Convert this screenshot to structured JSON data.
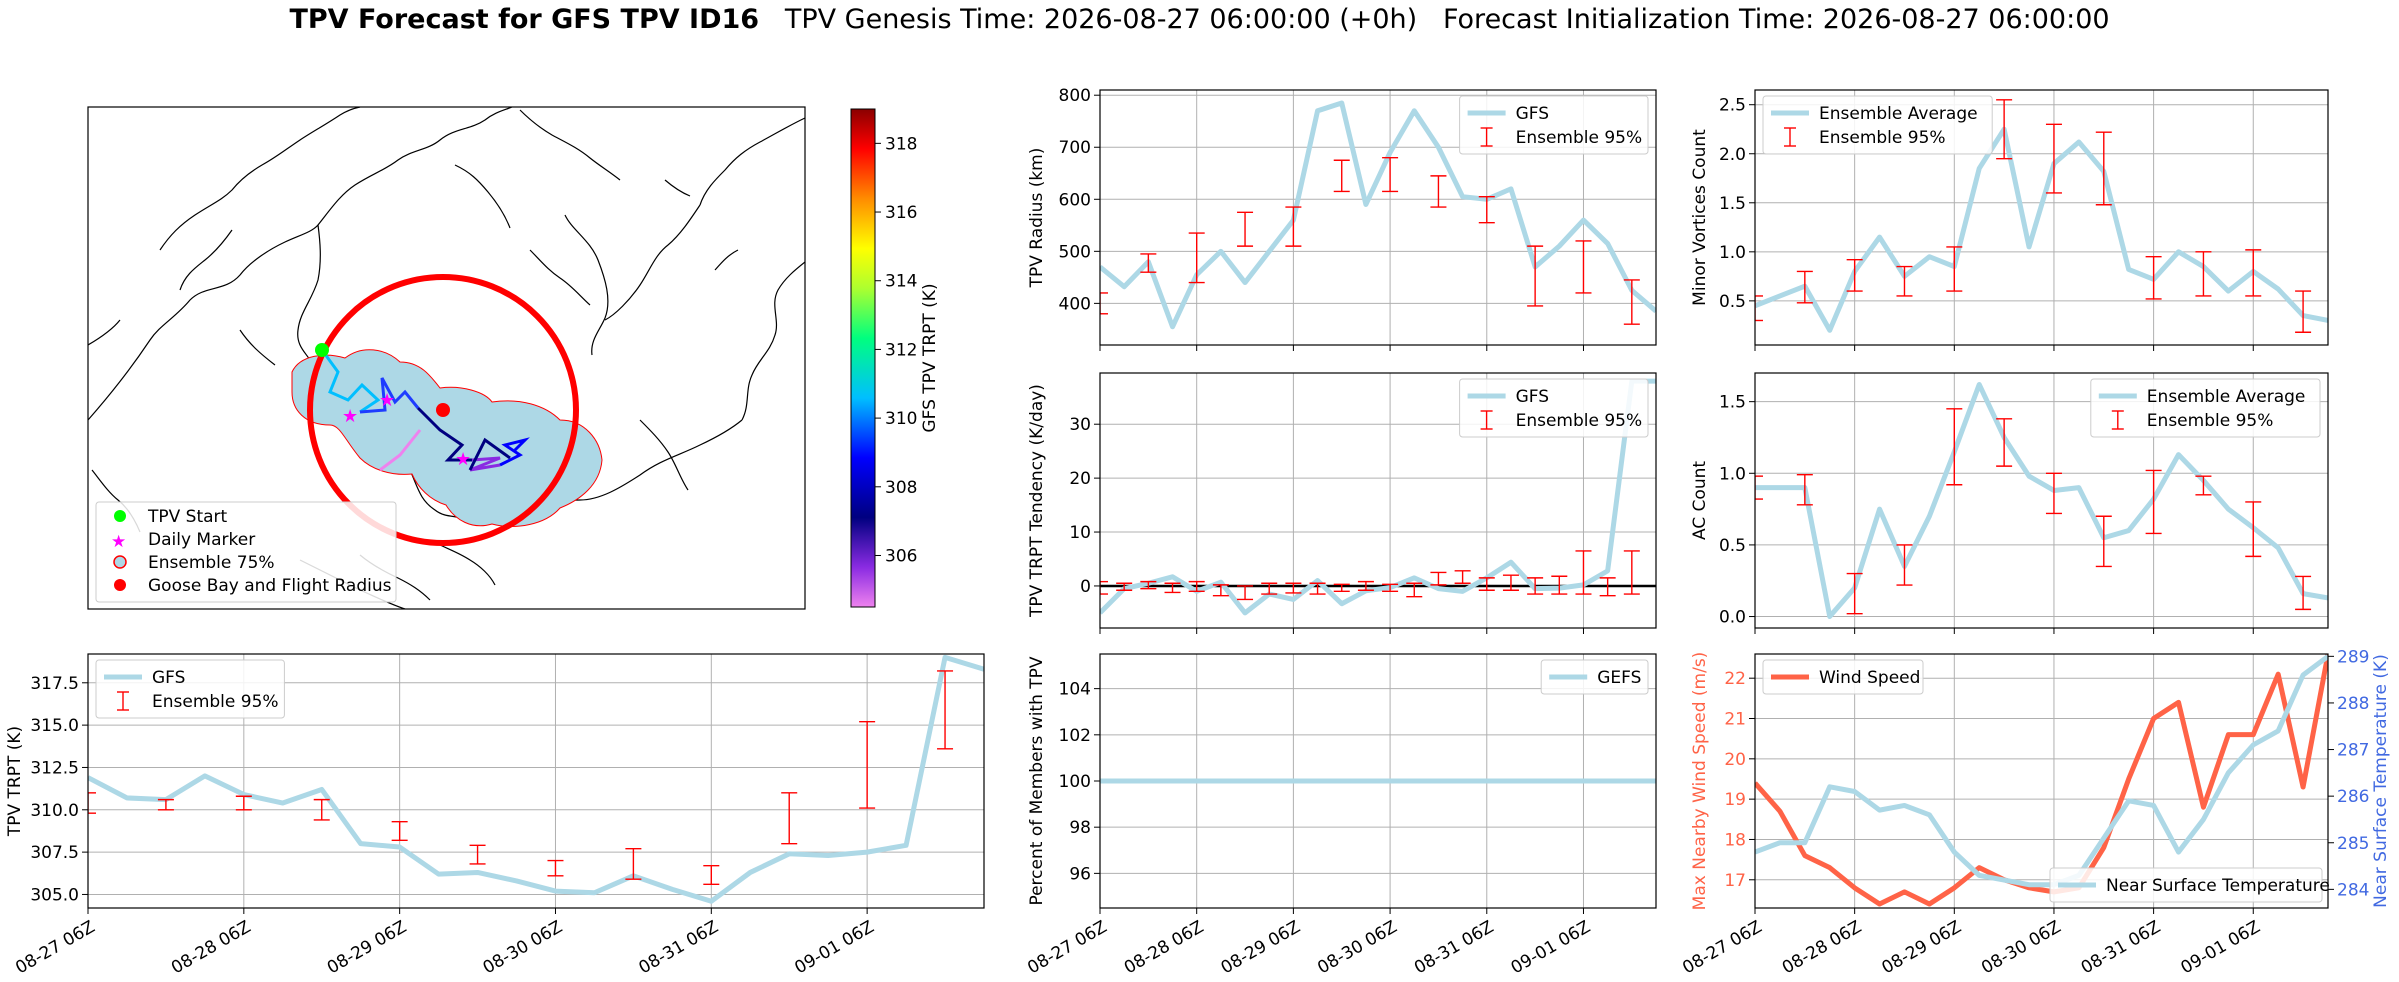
{
  "header": {
    "main_title": "TPV Forecast for GFS TPV ID16",
    "genesis": "TPV Genesis Time: 2026-08-27 06:00:00 (+0h)",
    "init": "Forecast Initialization Time: 2026-08-27 06:00:00"
  },
  "colors": {
    "gfs_line": "#add8e6",
    "errorbar": "#ff0000",
    "wind": "#ff6347",
    "temp_axis": "#4169e1",
    "ocean": "#ffffff",
    "ensemble_fill": "#add8e6",
    "flight_radius": "#ff0000",
    "tpv_start": "#00ff00",
    "daily_marker": "#ff00ff"
  },
  "map": {
    "colorbar_label": "GFS TPV TRPT (K)",
    "colorbar_ticks": [
      306,
      308,
      310,
      312,
      314,
      316,
      318
    ],
    "colorbar_range": [
      304.5,
      319
    ],
    "legend": [
      "TPV Start",
      "Daily Marker",
      "Ensemble 75%",
      "Goose Bay and Flight Radius"
    ]
  },
  "time_axis": {
    "ticks": [
      "08-27 06Z",
      "08-28 06Z",
      "08-29 06Z",
      "08-30 06Z",
      "08-31 06Z",
      "09-01 06Z"
    ],
    "n_steps": 24
  },
  "chart_data": [
    {
      "id": "trpt",
      "type": "line",
      "ylabel": "TPV TRPT (K)",
      "ylim": [
        304.2,
        319.2
      ],
      "yticks": [
        305.0,
        307.5,
        310.0,
        312.5,
        315.0,
        317.5
      ],
      "ytick_labels": [
        "305.0",
        "307.5",
        "310.0",
        "312.5",
        "315.0",
        "317.5"
      ],
      "legend_position": "upper-left",
      "series": [
        {
          "name": "GFS",
          "x": [
            0,
            1,
            2,
            3,
            4,
            5,
            6,
            7,
            8,
            9,
            10,
            11,
            12,
            13,
            14,
            15,
            16,
            17,
            18,
            19,
            20,
            21,
            22,
            23
          ],
          "y": [
            311.9,
            310.7,
            310.6,
            312.0,
            310.9,
            310.4,
            311.2,
            308.0,
            307.8,
            306.2,
            306.3,
            305.8,
            305.2,
            305.1,
            306.1,
            305.3,
            304.6,
            306.3,
            307.4,
            307.3,
            307.5,
            307.9,
            319.0,
            318.3
          ]
        },
        {
          "name": "Ensemble 95%",
          "x": [
            0,
            2,
            4,
            6,
            8,
            10,
            12,
            14,
            16,
            18,
            20,
            22
          ],
          "low": [
            309.8,
            310.0,
            310.0,
            309.4,
            308.2,
            306.8,
            306.1,
            305.9,
            305.6,
            308.0,
            310.1,
            313.6
          ],
          "high": [
            311.0,
            310.6,
            310.8,
            310.6,
            309.3,
            307.9,
            307.0,
            307.7,
            306.7,
            311.0,
            315.2,
            318.2
          ]
        }
      ]
    },
    {
      "id": "radius",
      "type": "line",
      "ylabel": "TPV Radius (km)",
      "ylim": [
        320,
        810
      ],
      "yticks": [
        400,
        500,
        600,
        700,
        800
      ],
      "ytick_labels": [
        "400",
        "500",
        "600",
        "700",
        "800"
      ],
      "legend_position": "upper-right",
      "series": [
        {
          "name": "GFS",
          "x": [
            0,
            1,
            2,
            3,
            4,
            5,
            6,
            7,
            8,
            9,
            10,
            11,
            12,
            13,
            14,
            15,
            16,
            17,
            18,
            19,
            20,
            21,
            22,
            23
          ],
          "y": [
            470,
            432,
            480,
            355,
            455,
            500,
            440,
            500,
            560,
            770,
            785,
            590,
            690,
            770,
            700,
            605,
            600,
            620,
            470,
            510,
            560,
            515,
            425,
            385
          ]
        },
        {
          "name": "Ensemble 95%",
          "x": [
            0,
            2,
            4,
            6,
            8,
            10,
            12,
            14,
            16,
            18,
            20,
            22
          ],
          "low": [
            380,
            460,
            440,
            510,
            510,
            615,
            615,
            585,
            555,
            395,
            420,
            360
          ],
          "high": [
            420,
            495,
            535,
            575,
            585,
            675,
            680,
            645,
            605,
            510,
            520,
            445
          ]
        }
      ]
    },
    {
      "id": "tendency",
      "type": "line",
      "ylabel": "TPV TRPT Tendency (K/day)",
      "ylim": [
        -7.8,
        39.5
      ],
      "yticks": [
        0,
        10,
        20,
        30
      ],
      "ytick_labels": [
        "0",
        "10",
        "20",
        "30"
      ],
      "zero_line": 0,
      "legend_position": "upper-right",
      "series": [
        {
          "name": "GFS",
          "x": [
            0,
            1,
            2,
            3,
            4,
            5,
            6,
            7,
            8,
            9,
            10,
            11,
            12,
            13,
            14,
            15,
            16,
            17,
            18,
            19,
            20,
            21,
            22,
            23
          ],
          "y": [
            -5.0,
            -0.5,
            0.5,
            1.7,
            -1.0,
            0.7,
            -5.0,
            -1.5,
            -2.5,
            1.0,
            -3.3,
            -0.9,
            -0.3,
            1.5,
            -0.5,
            -1.0,
            1.5,
            4.4,
            -0.5,
            -0.4,
            0.2,
            2.8,
            38.0,
            38.0
          ]
        },
        {
          "name": "Ensemble 95%",
          "x": [
            0,
            1,
            2,
            3,
            4,
            5,
            6,
            7,
            8,
            9,
            10,
            11,
            12,
            13,
            14,
            15,
            16,
            17,
            18,
            19,
            20,
            21,
            22
          ],
          "low": [
            -1.5,
            -0.8,
            -0.5,
            -1.2,
            -1.0,
            -1.8,
            -2.5,
            -1.5,
            -1.3,
            -1.5,
            -1.0,
            -0.8,
            -1.0,
            -2.0,
            0.2,
            0.5,
            -0.8,
            -0.8,
            -1.5,
            -1.5,
            -1.5,
            -1.8,
            -1.5
          ],
          "high": [
            0.8,
            0.5,
            0.8,
            0.5,
            0.8,
            0.2,
            0.0,
            0.5,
            0.5,
            0.5,
            0.3,
            0.8,
            0.3,
            0.5,
            2.5,
            2.8,
            1.5,
            2.0,
            1.5,
            1.8,
            6.5,
            1.5,
            6.5
          ]
        }
      ]
    },
    {
      "id": "percent",
      "type": "line",
      "ylabel": "Percent of Members with TPV",
      "ylim": [
        94.5,
        105.5
      ],
      "yticks": [
        96,
        98,
        100,
        102,
        104
      ],
      "ytick_labels": [
        "96",
        "98",
        "100",
        "102",
        "104"
      ],
      "legend_position": "upper-right",
      "series": [
        {
          "name": "GEFS",
          "x": [
            0,
            23
          ],
          "y": [
            100,
            100
          ]
        }
      ]
    },
    {
      "id": "minor",
      "type": "line",
      "ylabel": "Minor Vortices Count",
      "ylim": [
        0.05,
        2.65
      ],
      "yticks": [
        0.5,
        1.0,
        1.5,
        2.0,
        2.5
      ],
      "ytick_labels": [
        "0.5",
        "1.0",
        "1.5",
        "2.0",
        "2.5"
      ],
      "legend_position": "upper-left",
      "series": [
        {
          "name": "Ensemble Average",
          "x": [
            0,
            1,
            2,
            3,
            4,
            5,
            6,
            7,
            8,
            9,
            10,
            11,
            12,
            13,
            14,
            15,
            16,
            17,
            18,
            19,
            20,
            21,
            22,
            23
          ],
          "y": [
            0.45,
            0.55,
            0.65,
            0.2,
            0.8,
            1.15,
            0.75,
            0.95,
            0.85,
            1.85,
            2.25,
            1.05,
            1.9,
            2.12,
            1.82,
            0.82,
            0.72,
            1.0,
            0.85,
            0.6,
            0.8,
            0.62,
            0.35,
            0.3
          ]
        },
        {
          "name": "Ensemble 95%",
          "x": [
            0,
            2,
            4,
            6,
            8,
            10,
            12,
            14,
            16,
            18,
            20,
            22
          ],
          "low": [
            0.3,
            0.48,
            0.6,
            0.55,
            0.6,
            1.95,
            1.6,
            1.48,
            0.52,
            0.55,
            0.55,
            0.18
          ],
          "high": [
            0.55,
            0.8,
            0.92,
            0.85,
            1.05,
            2.55,
            2.3,
            2.22,
            0.95,
            1.0,
            1.02,
            0.6
          ]
        }
      ]
    },
    {
      "id": "ac",
      "type": "line",
      "ylabel": "AC Count",
      "ylim": [
        -0.08,
        1.7
      ],
      "yticks": [
        0.0,
        0.5,
        1.0,
        1.5
      ],
      "ytick_labels": [
        "0.0",
        "0.5",
        "1.0",
        "1.5"
      ],
      "legend_position": "upper-right",
      "series": [
        {
          "name": "Ensemble Average",
          "x": [
            0,
            1,
            2,
            3,
            4,
            5,
            6,
            7,
            8,
            9,
            10,
            11,
            12,
            13,
            14,
            15,
            16,
            17,
            18,
            19,
            20,
            21,
            22,
            23
          ],
          "y": [
            0.9,
            0.9,
            0.9,
            0.0,
            0.2,
            0.75,
            0.35,
            0.7,
            1.15,
            1.62,
            1.25,
            0.98,
            0.88,
            0.9,
            0.55,
            0.6,
            0.82,
            1.13,
            0.95,
            0.75,
            0.62,
            0.48,
            0.16,
            0.13
          ]
        },
        {
          "name": "Ensemble 95%",
          "x": [
            0,
            2,
            4,
            6,
            8,
            10,
            12,
            14,
            16,
            18,
            20,
            22
          ],
          "low": [
            0.82,
            0.78,
            0.02,
            0.22,
            0.92,
            1.05,
            0.72,
            0.35,
            0.58,
            0.85,
            0.42,
            0.05
          ],
          "high": [
            0.98,
            0.99,
            0.3,
            0.5,
            1.45,
            1.38,
            1.0,
            0.7,
            1.02,
            0.98,
            0.8,
            0.28
          ]
        }
      ]
    },
    {
      "id": "wind_temp",
      "type": "line",
      "ylabel": "Max Nearby Wind Speed (m/s)",
      "ylim": [
        16.3,
        22.6
      ],
      "yticks": [
        17,
        18,
        19,
        20,
        21,
        22
      ],
      "ytick_labels": [
        "17",
        "18",
        "19",
        "20",
        "21",
        "22"
      ],
      "y2label": "Near Surface Temperature (K)",
      "y2lim": [
        283.6,
        289.05
      ],
      "y2ticks": [
        284,
        285,
        286,
        287,
        288,
        289
      ],
      "y2tick_labels": [
        "284",
        "285",
        "286",
        "287",
        "288",
        "289"
      ],
      "series": [
        {
          "name": "Wind Speed",
          "axis": "left",
          "x": [
            0,
            1,
            2,
            3,
            4,
            5,
            6,
            7,
            8,
            9,
            10,
            11,
            12,
            13,
            14,
            15,
            16,
            17,
            18,
            19,
            20,
            21,
            22,
            23
          ],
          "y": [
            19.4,
            18.7,
            17.6,
            17.3,
            16.8,
            16.4,
            16.7,
            16.4,
            16.8,
            17.3,
            17.0,
            16.8,
            16.7,
            16.8,
            17.8,
            19.5,
            21.0,
            21.4,
            18.8,
            20.6,
            20.6,
            22.1,
            19.3,
            22.6
          ]
        },
        {
          "name": "Near Surface Temperature",
          "axis": "right",
          "x": [
            0,
            1,
            2,
            3,
            4,
            5,
            6,
            7,
            8,
            9,
            10,
            11,
            12,
            13,
            14,
            15,
            16,
            17,
            18,
            19,
            20,
            21,
            22,
            23
          ],
          "y": [
            284.8,
            285.0,
            285.0,
            286.2,
            286.1,
            285.7,
            285.8,
            285.6,
            284.8,
            284.3,
            284.2,
            284.1,
            284.1,
            284.3,
            285.1,
            285.9,
            285.8,
            284.8,
            285.5,
            286.5,
            287.1,
            287.4,
            288.6,
            289.0
          ]
        }
      ]
    }
  ]
}
